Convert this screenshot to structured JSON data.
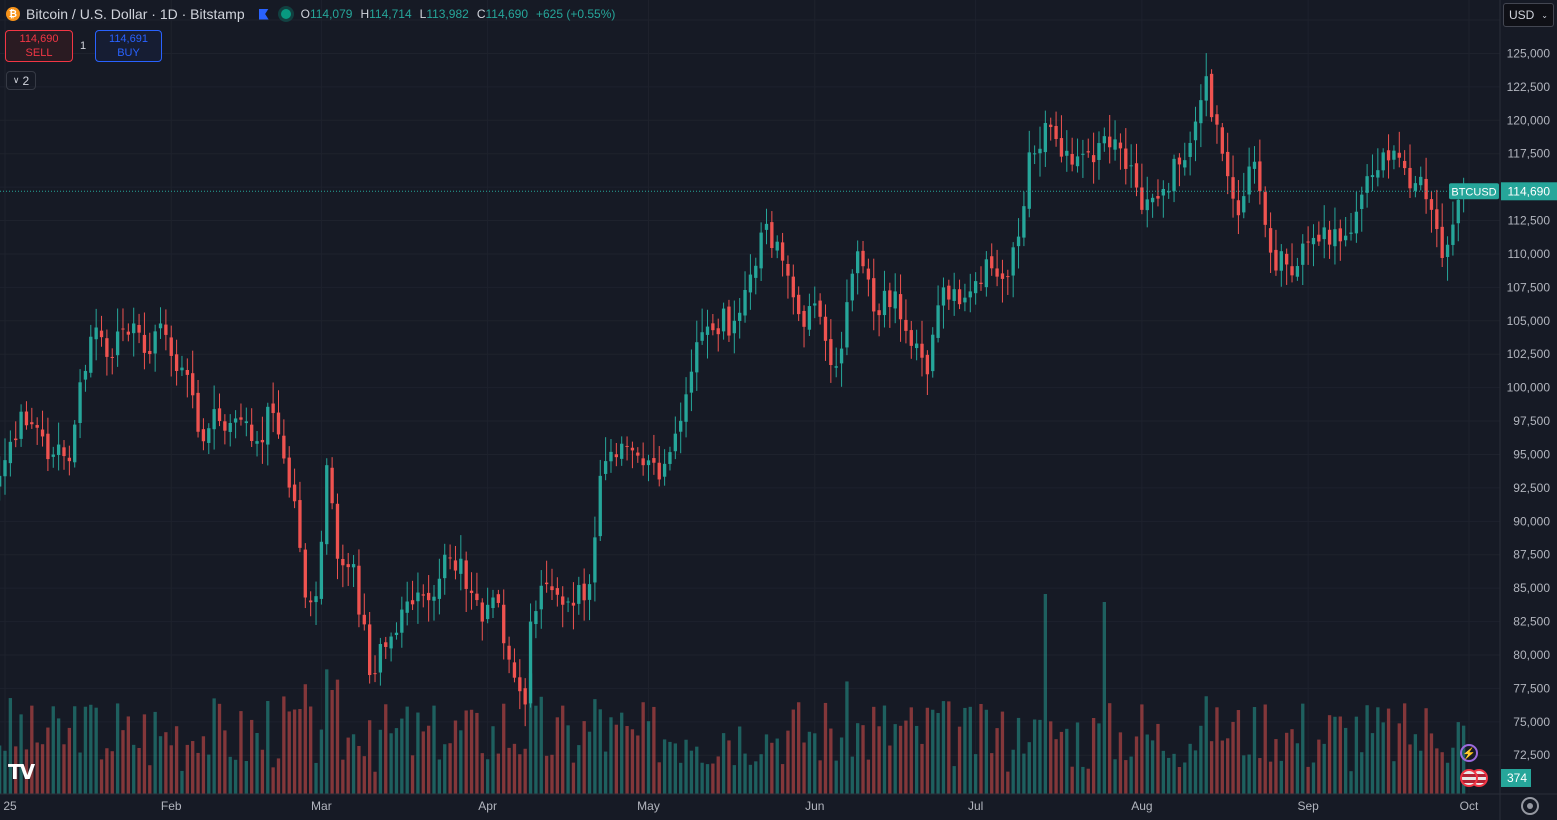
{
  "header": {
    "coin_glyph": "₿",
    "title": "Bitcoin / U.S. Dollar · 1D · Bitstamp",
    "open_label": "O",
    "open": "114,079",
    "high_label": "H",
    "high": "114,714",
    "low_label": "L",
    "low": "113,982",
    "close_label": "C",
    "close": "114,690",
    "change": "+625 (+0.55%)"
  },
  "trade": {
    "sell_price": "114,690",
    "sell_label": "SELL",
    "quantity": "1",
    "buy_price": "114,691",
    "buy_label": "BUY"
  },
  "indicators_toggle": "2",
  "currency_select": "USD",
  "logo_text": "TV",
  "colors": {
    "up": "#26a69a",
    "down": "#ef5350",
    "background": "#161a25",
    "grid": "#1e222d"
  },
  "chart_data": {
    "type": "candlestick",
    "symbol": "BTCUSD",
    "last_price": 114690,
    "last_price_label": "114,690",
    "volume_label": "374",
    "ylim": [
      69600,
      129000
    ],
    "y_ticks": [
      72500,
      75000,
      77500,
      80000,
      82500,
      85000,
      87500,
      90000,
      92500,
      95000,
      97500,
      100000,
      102500,
      105000,
      107500,
      110000,
      112500,
      115000,
      117500,
      120000,
      122500,
      125000,
      127500
    ],
    "x_ticks": [
      {
        "label": "25",
        "date": "2025-01-01"
      },
      {
        "label": "Feb",
        "date": "2025-02-01"
      },
      {
        "label": "Mar",
        "date": "2025-03-01"
      },
      {
        "label": "Apr",
        "date": "2025-04-01"
      },
      {
        "label": "May",
        "date": "2025-05-01"
      },
      {
        "label": "Jun",
        "date": "2025-06-01"
      },
      {
        "label": "Jul",
        "date": "2025-07-01"
      },
      {
        "label": "Aug",
        "date": "2025-08-01"
      },
      {
        "label": "Sep",
        "date": "2025-09-01"
      },
      {
        "label": "Oct",
        "date": "2025-10-01"
      }
    ],
    "closes": [
      {
        "date": "2024-12-31",
        "close": 93400
      },
      {
        "date": "2025-01-04",
        "close": 98200
      },
      {
        "date": "2025-01-07",
        "close": 97000
      },
      {
        "date": "2025-01-10",
        "close": 95000
      },
      {
        "date": "2025-01-13",
        "close": 94500
      },
      {
        "date": "2025-01-15",
        "close": 100400
      },
      {
        "date": "2025-01-18",
        "close": 104500
      },
      {
        "date": "2025-01-20",
        "close": 102300
      },
      {
        "date": "2025-01-22",
        "close": 104200
      },
      {
        "date": "2025-01-25",
        "close": 104800
      },
      {
        "date": "2025-01-27",
        "close": 102600
      },
      {
        "date": "2025-01-30",
        "close": 104800
      },
      {
        "date": "2025-02-03",
        "close": 101500
      },
      {
        "date": "2025-02-06",
        "close": 96700
      },
      {
        "date": "2025-02-10",
        "close": 97500
      },
      {
        "date": "2025-02-14",
        "close": 97600
      },
      {
        "date": "2025-02-17",
        "close": 96000
      },
      {
        "date": "2025-02-20",
        "close": 98100
      },
      {
        "date": "2025-02-21",
        "close": 96500
      },
      {
        "date": "2025-02-24",
        "close": 91500
      },
      {
        "date": "2025-02-26",
        "close": 84300
      },
      {
        "date": "2025-02-28",
        "close": 84400
      },
      {
        "date": "2025-03-02",
        "close": 94200
      },
      {
        "date": "2025-03-04",
        "close": 87200
      },
      {
        "date": "2025-03-07",
        "close": 86800
      },
      {
        "date": "2025-03-10",
        "close": 78500
      },
      {
        "date": "2025-03-13",
        "close": 80600
      },
      {
        "date": "2025-03-17",
        "close": 84000
      },
      {
        "date": "2025-03-21",
        "close": 84100
      },
      {
        "date": "2025-03-24",
        "close": 87500
      },
      {
        "date": "2025-03-27",
        "close": 87200
      },
      {
        "date": "2025-03-31",
        "close": 82500
      },
      {
        "date": "2025-04-02",
        "close": 84300
      },
      {
        "date": "2025-04-06",
        "close": 78300
      },
      {
        "date": "2025-04-08",
        "close": 76300
      },
      {
        "date": "2025-04-09",
        "close": 82500
      },
      {
        "date": "2025-04-12",
        "close": 85300
      },
      {
        "date": "2025-04-16",
        "close": 84000
      },
      {
        "date": "2025-04-20",
        "close": 85300
      },
      {
        "date": "2025-04-22",
        "close": 93400
      },
      {
        "date": "2025-04-25",
        "close": 94800
      },
      {
        "date": "2025-04-30",
        "close": 94200
      },
      {
        "date": "2025-05-04",
        "close": 94300
      },
      {
        "date": "2025-05-08",
        "close": 99500
      },
      {
        "date": "2025-05-10",
        "close": 103400
      },
      {
        "date": "2025-05-13",
        "close": 104300
      },
      {
        "date": "2025-05-18",
        "close": 105600
      },
      {
        "date": "2025-05-22",
        "close": 111600
      },
      {
        "date": "2025-05-26",
        "close": 109500
      },
      {
        "date": "2025-05-29",
        "close": 105500
      },
      {
        "date": "2025-06-02",
        "close": 105300
      },
      {
        "date": "2025-06-05",
        "close": 101600
      },
      {
        "date": "2025-06-09",
        "close": 110200
      },
      {
        "date": "2025-06-12",
        "close": 105700
      },
      {
        "date": "2025-06-16",
        "close": 107200
      },
      {
        "date": "2025-06-20",
        "close": 103300
      },
      {
        "date": "2025-06-22",
        "close": 101000
      },
      {
        "date": "2025-06-25",
        "close": 107500
      },
      {
        "date": "2025-06-30",
        "close": 107200
      },
      {
        "date": "2025-07-03",
        "close": 109600
      },
      {
        "date": "2025-07-07",
        "close": 108300
      },
      {
        "date": "2025-07-09",
        "close": 111300
      },
      {
        "date": "2025-07-11",
        "close": 117600
      },
      {
        "date": "2025-07-14",
        "close": 119800
      },
      {
        "date": "2025-07-16",
        "close": 118600
      },
      {
        "date": "2025-07-20",
        "close": 117300
      },
      {
        "date": "2025-07-24",
        "close": 118300
      },
      {
        "date": "2025-07-28",
        "close": 117900
      },
      {
        "date": "2025-08-01",
        "close": 113300
      },
      {
        "date": "2025-08-03",
        "close": 114200
      },
      {
        "date": "2025-08-08",
        "close": 116700
      },
      {
        "date": "2025-08-13",
        "close": 123300
      },
      {
        "date": "2025-08-16",
        "close": 117500
      },
      {
        "date": "2025-08-19",
        "close": 112900
      },
      {
        "date": "2025-08-22",
        "close": 116900
      },
      {
        "date": "2025-08-25",
        "close": 110100
      },
      {
        "date": "2025-08-29",
        "close": 108400
      },
      {
        "date": "2025-09-02",
        "close": 111200
      },
      {
        "date": "2025-09-05",
        "close": 110700
      },
      {
        "date": "2025-09-09",
        "close": 111600
      },
      {
        "date": "2025-09-13",
        "close": 115900
      },
      {
        "date": "2025-09-18",
        "close": 117200
      },
      {
        "date": "2025-09-21",
        "close": 115300
      },
      {
        "date": "2025-09-24",
        "close": 113300
      },
      {
        "date": "2025-09-26",
        "close": 109700
      },
      {
        "date": "2025-09-28",
        "close": 112200
      },
      {
        "date": "2025-09-30",
        "close": 114690
      }
    ],
    "volume_spikes": [
      {
        "date": "2025-07-14",
        "relative": 1.0
      },
      {
        "date": "2025-07-25",
        "relative": 0.96
      }
    ]
  }
}
